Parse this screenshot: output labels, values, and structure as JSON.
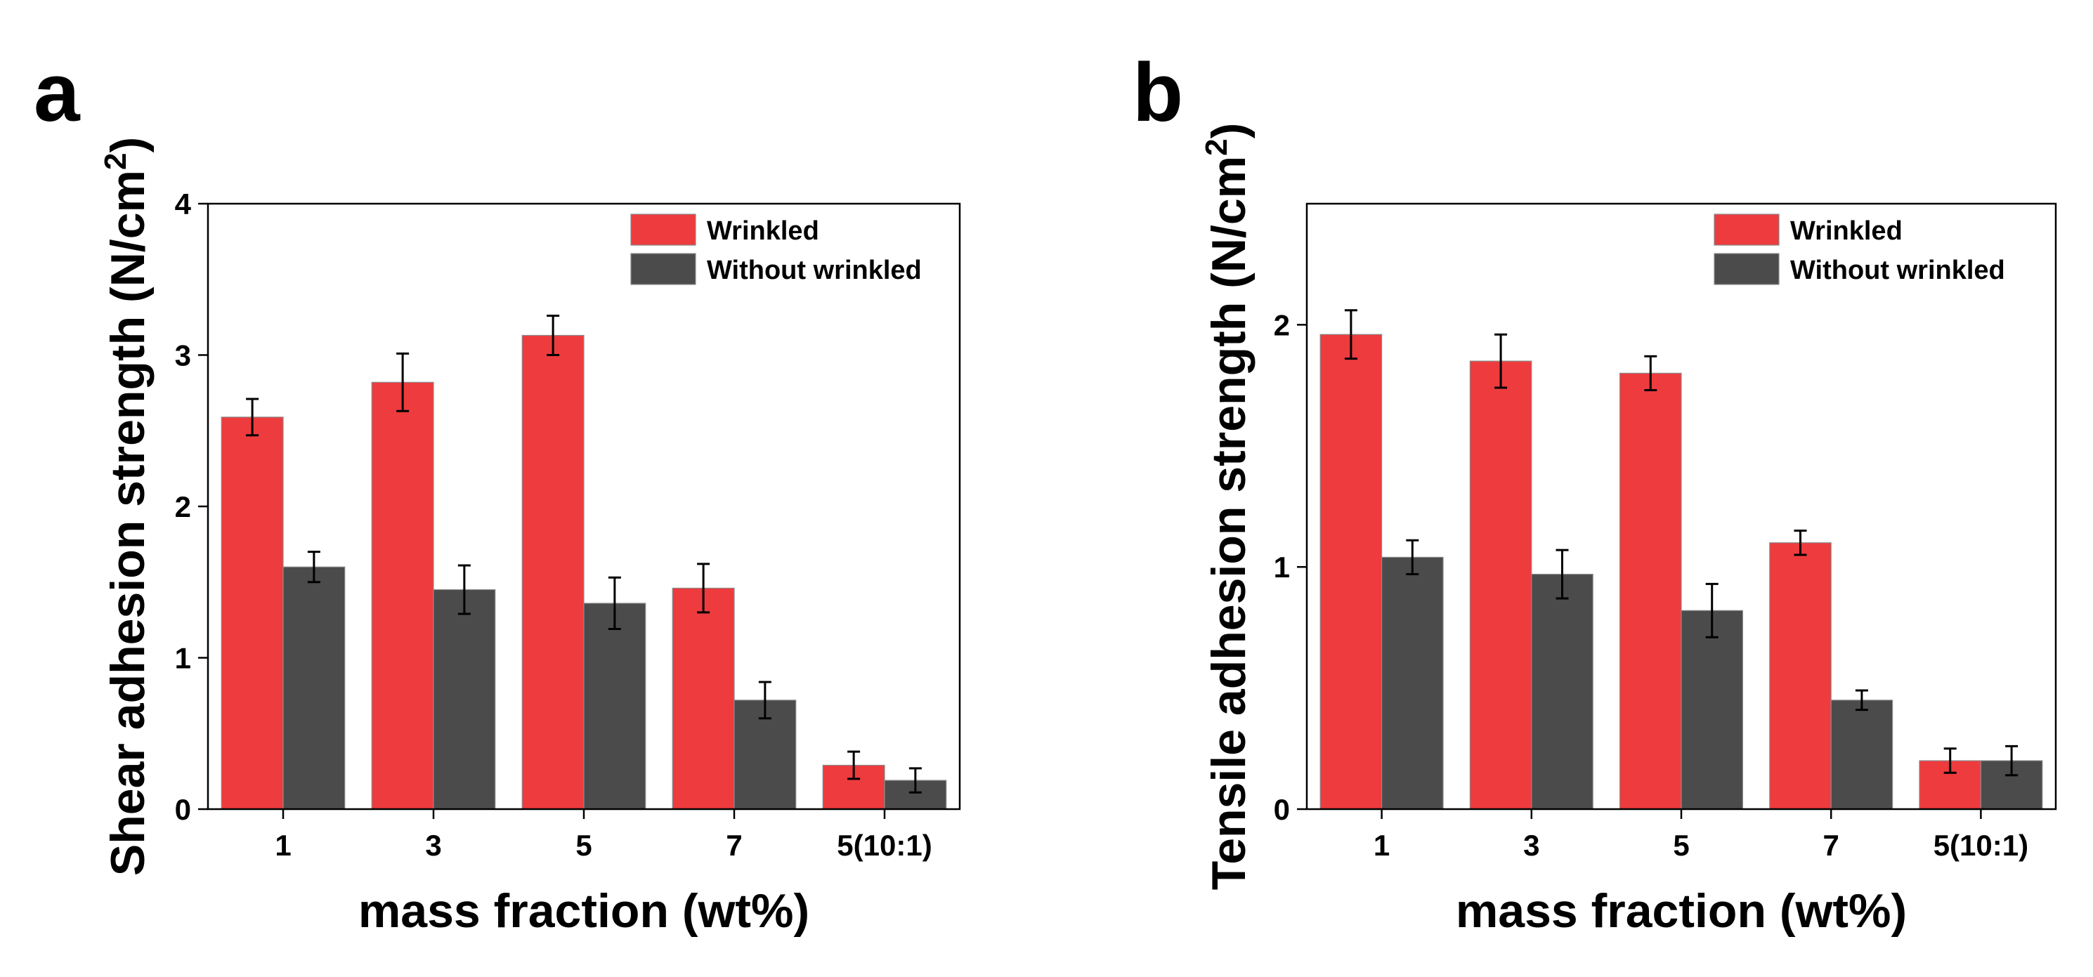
{
  "chart_data": [
    {
      "type": "bar",
      "panel_label": "a",
      "categories": [
        "1",
        "3",
        "5",
        "7",
        "5(10:1)"
      ],
      "series": [
        {
          "name": "Wrinkled",
          "color": "#ee3b3e",
          "values": [
            2.59,
            2.82,
            3.13,
            1.46,
            0.29
          ],
          "errors": [
            0.12,
            0.19,
            0.13,
            0.16,
            0.09
          ]
        },
        {
          "name": "Without wrinkled",
          "color": "#4b4b4b",
          "values": [
            1.6,
            1.45,
            1.36,
            0.72,
            0.19
          ],
          "errors": [
            0.1,
            0.16,
            0.17,
            0.12,
            0.08
          ]
        }
      ],
      "title": "",
      "xlabel": "mass fraction (wt%)",
      "ylabel": "Shear adhesion strength (N/cm",
      "ylabel_superscript": "2",
      "ylabel_suffix": ")",
      "ylim": [
        0,
        4
      ],
      "yticks": [
        "0",
        "1",
        "2",
        "3",
        "4"
      ],
      "grid": false,
      "legend_position": "top-right"
    },
    {
      "type": "bar",
      "panel_label": "b",
      "categories": [
        "1",
        "3",
        "5",
        "7",
        "5(10:1)"
      ],
      "series": [
        {
          "name": "Wrinkled",
          "color": "#ee3b3e",
          "values": [
            1.96,
            1.85,
            1.8,
            1.1,
            0.2
          ],
          "errors": [
            0.1,
            0.11,
            0.07,
            0.05,
            0.05
          ]
        },
        {
          "name": "Without wrinkled",
          "color": "#4b4b4b",
          "values": [
            1.04,
            0.97,
            0.82,
            0.45,
            0.2
          ],
          "errors": [
            0.07,
            0.1,
            0.11,
            0.04,
            0.06
          ]
        }
      ],
      "title": "",
      "xlabel": "mass fraction (wt%)",
      "ylabel": "Tensile adhesion strength (N/cm",
      "ylabel_superscript": "2",
      "ylabel_suffix": ")",
      "ylim": [
        0,
        2.5
      ],
      "yticks": [
        "0",
        "1",
        "2"
      ],
      "grid": false,
      "legend_position": "top-right"
    }
  ]
}
